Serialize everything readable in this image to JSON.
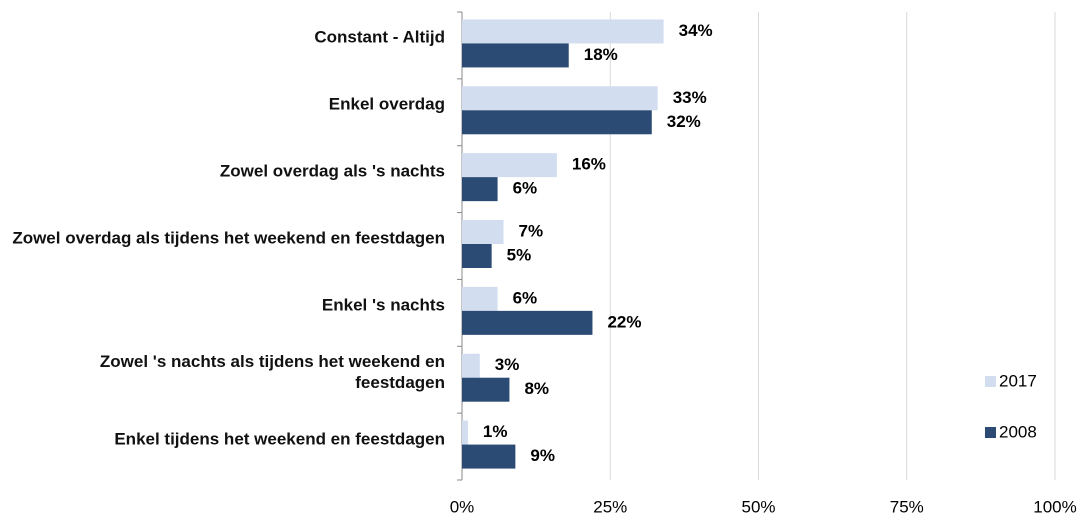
{
  "chart_data": {
    "type": "bar",
    "orientation": "horizontal",
    "categories": [
      "Constant - Altijd",
      "Enkel overdag",
      "Zowel overdag als 's nachts",
      "Zowel overdag als tijdens het weekend en feestdagen",
      "Enkel 's nachts",
      "Zowel 's nachts als tijdens het weekend en feestdagen",
      "Enkel tijdens het weekend en feestdagen"
    ],
    "series": [
      {
        "name": "2017",
        "color": "#d3ddf0",
        "values": [
          34,
          33,
          16,
          7,
          6,
          3,
          1
        ],
        "value_labels": [
          "34%",
          "33%",
          "16%",
          "7%",
          "6%",
          "3%",
          "1%"
        ]
      },
      {
        "name": "2008",
        "color": "#2b4b75",
        "values": [
          18,
          32,
          6,
          5,
          22,
          8,
          9
        ],
        "value_labels": [
          "18%",
          "32%",
          "6%",
          "5%",
          "22%",
          "8%",
          "9%"
        ]
      }
    ],
    "xlim": [
      0,
      100
    ],
    "xticks": [
      {
        "value": 0,
        "label": "0%"
      },
      {
        "value": 25,
        "label": "25%"
      },
      {
        "value": 50,
        "label": "50%"
      },
      {
        "value": 75,
        "label": "75%"
      },
      {
        "value": 100,
        "label": "100%"
      }
    ],
    "grid": true,
    "legend": "right"
  }
}
